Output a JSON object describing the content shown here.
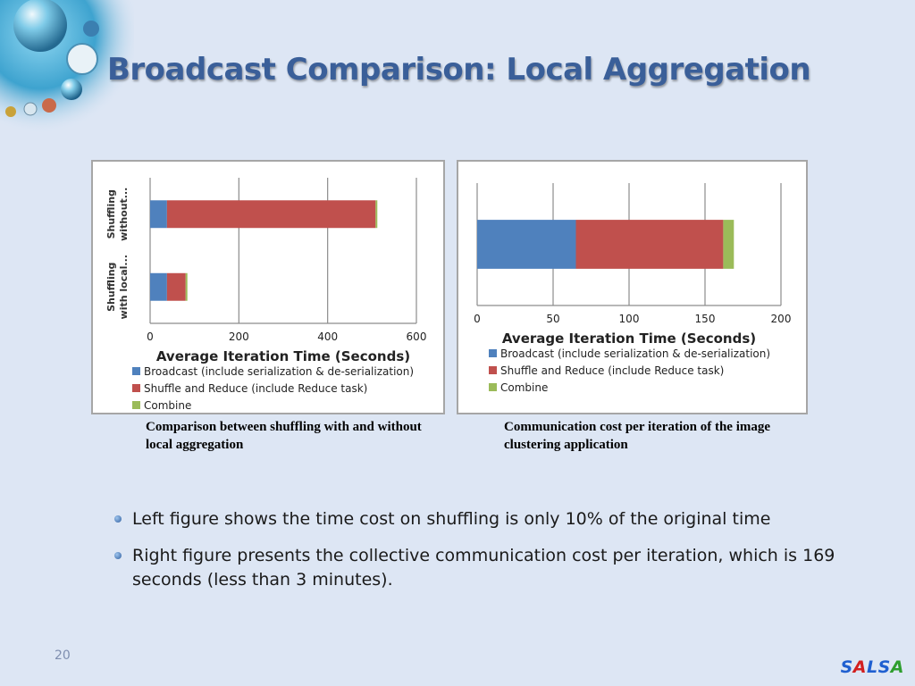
{
  "slide": {
    "title": "Broadcast Comparison: Local Aggregation",
    "page_number": "20",
    "bullets": [
      "Left figure shows the time cost on shuffling is only 10% of the original time",
      "Right figure presents the collective communication cost per iteration, which is 169 seconds (less than 3 minutes)."
    ],
    "brand": {
      "letters": [
        "S",
        "A",
        "L",
        "S",
        "A"
      ],
      "colors": [
        "#1f5fd0",
        "#d21f1f",
        "#1f5fd0",
        "#1f5fd0",
        "#2e9e2e"
      ]
    }
  },
  "figures": {
    "left_caption": "Comparison between shuffling with and without local aggregation",
    "right_caption": "Communication cost per iteration of the image clustering application"
  },
  "chart_data": [
    {
      "type": "bar",
      "orientation": "horizontal",
      "stacked": true,
      "categories": [
        "Shuffling without...",
        "Shuffling with local..."
      ],
      "category_lines": [
        [
          "Shuffling",
          "without..."
        ],
        [
          "Shuffling",
          "with local..."
        ]
      ],
      "series": [
        {
          "name": "Broadcast (include serialization & de-serialization)",
          "values": [
            38,
            38
          ],
          "color": "#4f81bd"
        },
        {
          "name": "Shuffle and Reduce (include Reduce task)",
          "values": [
            470,
            42
          ],
          "color": "#c0504d"
        },
        {
          "name": "Combine",
          "values": [
            4,
            4
          ],
          "color": "#9bbb59"
        }
      ],
      "xlabel": "Average Iteration Time (Seconds)",
      "xlim": [
        0,
        600
      ],
      "xticks": [
        0,
        200,
        400,
        600
      ],
      "grid": true,
      "legend": "bottom"
    },
    {
      "type": "bar",
      "orientation": "horizontal",
      "stacked": true,
      "categories": [
        ""
      ],
      "series": [
        {
          "name": "Broadcast (include serialization & de-serialization)",
          "values": [
            65
          ],
          "color": "#4f81bd"
        },
        {
          "name": "Shuffle and Reduce (include Reduce task)",
          "values": [
            97
          ],
          "color": "#c0504d"
        },
        {
          "name": "Combine",
          "values": [
            7
          ],
          "color": "#9bbb59"
        }
      ],
      "xlabel": "Average Iteration Time (Seconds)",
      "xlim": [
        0,
        200
      ],
      "xticks": [
        0,
        50,
        100,
        150,
        200
      ],
      "grid": true,
      "legend": "bottom"
    }
  ]
}
